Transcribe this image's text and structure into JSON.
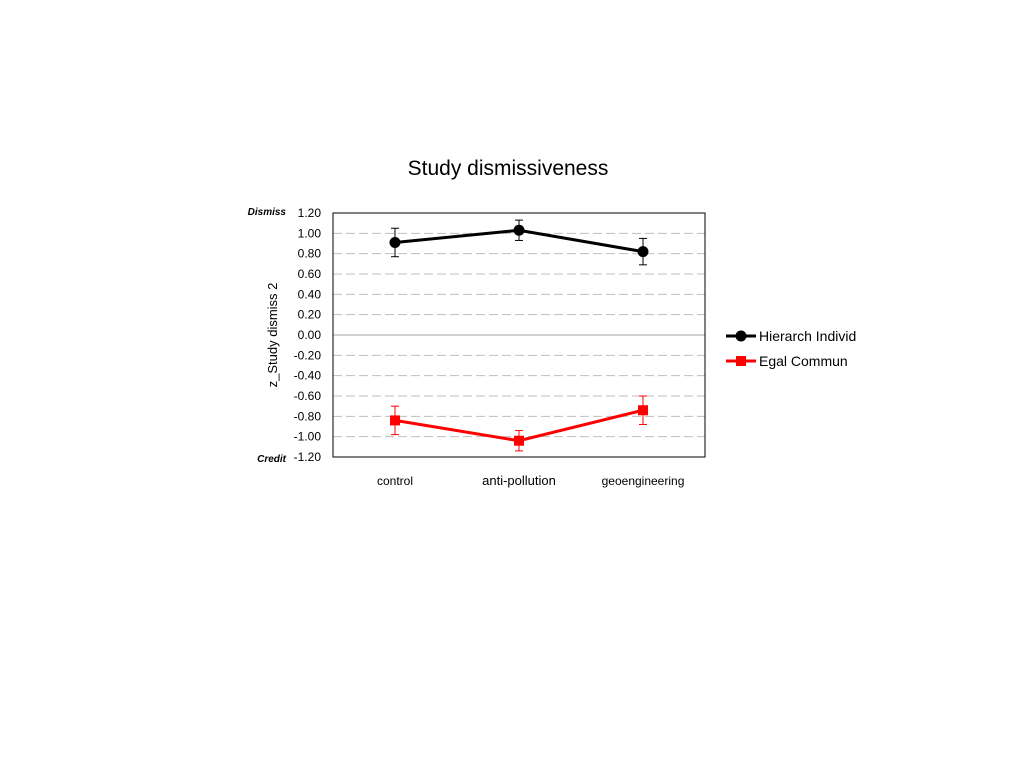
{
  "chart_data": {
    "type": "line",
    "title": "Study dismissiveness",
    "ylabel": "z_Study dismiss 2",
    "xlabel": "",
    "top_annotation": "Dismiss",
    "bottom_annotation": "Credit",
    "categories": [
      "control",
      "anti-pollution",
      "geoengineering"
    ],
    "ylim": [
      -1.2,
      1.2
    ],
    "yticks": [
      1.2,
      1.0,
      0.8,
      0.6,
      0.4,
      0.2,
      0.0,
      -0.2,
      -0.4,
      -0.6,
      -0.8,
      -1.0,
      -1.2
    ],
    "ytick_labels": [
      "1.20",
      "1.00",
      "0.80",
      "0.60",
      "0.40",
      "0.20",
      "0.00",
      "-0.20",
      "-0.40",
      "-0.60",
      "-0.80",
      "-1.00",
      "-1.20"
    ],
    "grid": "dashed horizontal",
    "legend_position": "right",
    "series": [
      {
        "name": "Hierarch Individ",
        "color": "#000000",
        "marker": "circle",
        "values": [
          0.91,
          1.03,
          0.82
        ],
        "error": [
          0.14,
          0.1,
          0.13
        ]
      },
      {
        "name": "Egal Commun",
        "color": "#ff0000",
        "marker": "square",
        "values": [
          -0.84,
          -1.04,
          -0.74
        ],
        "error": [
          0.14,
          0.1,
          0.14
        ]
      }
    ]
  }
}
